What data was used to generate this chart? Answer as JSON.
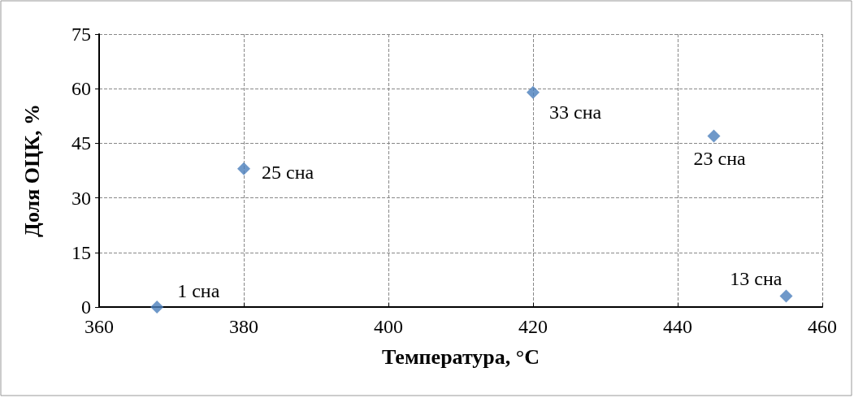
{
  "chart_data": {
    "type": "scatter",
    "xlabel": "Температура, °C",
    "ylabel": "Доля ОЦК, %",
    "x": [
      368,
      380,
      420,
      445,
      455
    ],
    "series": [
      {
        "color": "#4a7ebb",
        "values": [
          0,
          38,
          59,
          47,
          3
        ]
      }
    ],
    "xlim": [
      360,
      460
    ],
    "xticks": [
      360,
      380,
      400,
      420,
      440,
      460
    ],
    "ylim": [
      0,
      75
    ],
    "yticks": [
      0,
      15,
      30,
      45,
      60,
      75
    ],
    "grid": true,
    "marker": "diamond",
    "annotations": [
      {
        "text": "1 сна",
        "x": 368,
        "y": 0
      },
      {
        "text": "25 сна",
        "x": 380,
        "y": 38
      },
      {
        "text": "33 сна",
        "x": 420,
        "y": 59
      },
      {
        "text": "23 сна",
        "x": 445,
        "y": 47
      },
      {
        "text": "13 сна",
        "x": 455,
        "y": 3
      }
    ]
  }
}
